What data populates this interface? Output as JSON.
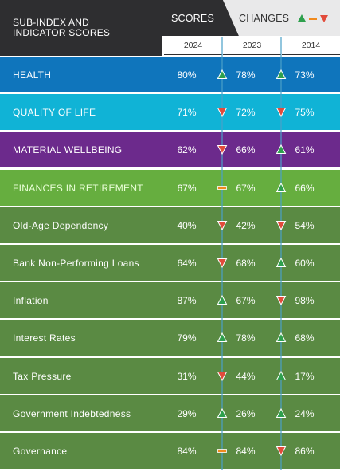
{
  "header": {
    "title_line1": "SUB-INDEX AND",
    "title_line2": "INDICATOR SCORES",
    "scores_tab": "SCORES",
    "changes_tab": "CHANGES",
    "legend_icons": [
      "triangle-up-green",
      "dash-orange",
      "triangle-down-red"
    ],
    "years": [
      "2024",
      "2023",
      "2014"
    ]
  },
  "colors": {
    "header_dark": "#2e2e30",
    "changes_tab_bg": "#e9e9ea",
    "divider": "#4aa0c8",
    "up": "#2ea04d",
    "down": "#e24b3b",
    "same": "#f08a1d",
    "health": "#0f75bc",
    "quality": "#10b3d6",
    "material": "#6c2a8c",
    "finances": "#66ae3f",
    "indicator": "#5a8a43"
  },
  "chart_data": {
    "type": "table",
    "title": "SUB-INDEX AND INDICATOR SCORES",
    "columns": [
      "2024",
      "2023",
      "2014"
    ],
    "rows": [
      {
        "label": "HEALTH",
        "kind": "health",
        "values": [
          "80%",
          "78%",
          "73%"
        ],
        "changes": [
          "up",
          "up"
        ]
      },
      {
        "label": "QUALITY OF LIFE",
        "kind": "quality",
        "values": [
          "71%",
          "72%",
          "75%"
        ],
        "changes": [
          "down",
          "down"
        ]
      },
      {
        "label": "MATERIAL WELLBEING",
        "kind": "material",
        "values": [
          "62%",
          "66%",
          "61%"
        ],
        "changes": [
          "down",
          "up"
        ]
      },
      {
        "label": "FINANCES IN RETIREMENT",
        "kind": "finances",
        "values": [
          "67%",
          "67%",
          "66%"
        ],
        "changes": [
          "same",
          "up"
        ]
      },
      {
        "label": "Old-Age Dependency",
        "kind": "indicator",
        "values": [
          "40%",
          "42%",
          "54%"
        ],
        "changes": [
          "down",
          "down"
        ]
      },
      {
        "label": "Bank Non-Performing Loans",
        "kind": "indicator",
        "values": [
          "64%",
          "68%",
          "60%"
        ],
        "changes": [
          "down",
          "up"
        ]
      },
      {
        "label": "Inflation",
        "kind": "indicator",
        "values": [
          "87%",
          "67%",
          "98%"
        ],
        "changes": [
          "up",
          "down"
        ]
      },
      {
        "label": "Interest Rates",
        "kind": "indicator",
        "values": [
          "79%",
          "78%",
          "68%"
        ],
        "changes": [
          "up",
          "up"
        ]
      },
      {
        "label": "Tax Pressure",
        "kind": "indicator",
        "values": [
          "31%",
          "44%",
          "17%"
        ],
        "changes": [
          "down",
          "up"
        ]
      },
      {
        "label": "Government Indebtedness",
        "kind": "indicator",
        "values": [
          "29%",
          "26%",
          "24%"
        ],
        "changes": [
          "up",
          "up"
        ]
      },
      {
        "label": "Governance",
        "kind": "indicator",
        "values": [
          "84%",
          "84%",
          "86%"
        ],
        "changes": [
          "same",
          "down"
        ]
      }
    ]
  }
}
